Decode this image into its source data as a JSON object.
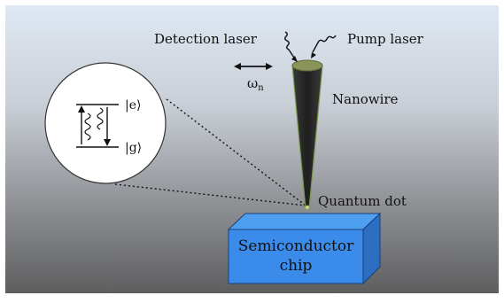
{
  "labels": {
    "detection_laser": "Detection laser",
    "pump_laser": "Pump laser",
    "omega_n": "ω",
    "omega_n_sub": "n",
    "nanowire": "Nanowire",
    "quantum_dot": "Quantum dot",
    "chip_line1": "Semiconductor",
    "chip_line2": "chip"
  },
  "inset": {
    "excited_state": "|e⟩",
    "ground_state": "|g⟩"
  },
  "colors": {
    "background_top": "#d9e4f1",
    "background_bottom": "#5c5c5c",
    "chip_face": "#3f8fe6",
    "chip_side": "#2b6fc4",
    "chip_edge": "#1a3f78",
    "nanowire": "#2e2e2e",
    "nanowire_outline": "#6f8f4a",
    "nanowire_tip": "#7f8c52",
    "inset_fill": "#ffffff"
  },
  "icons": {
    "detection_laser": "wavy-arrow-icon",
    "pump_laser": "wavy-arrow-icon",
    "vibration": "double-arrow-icon"
  }
}
